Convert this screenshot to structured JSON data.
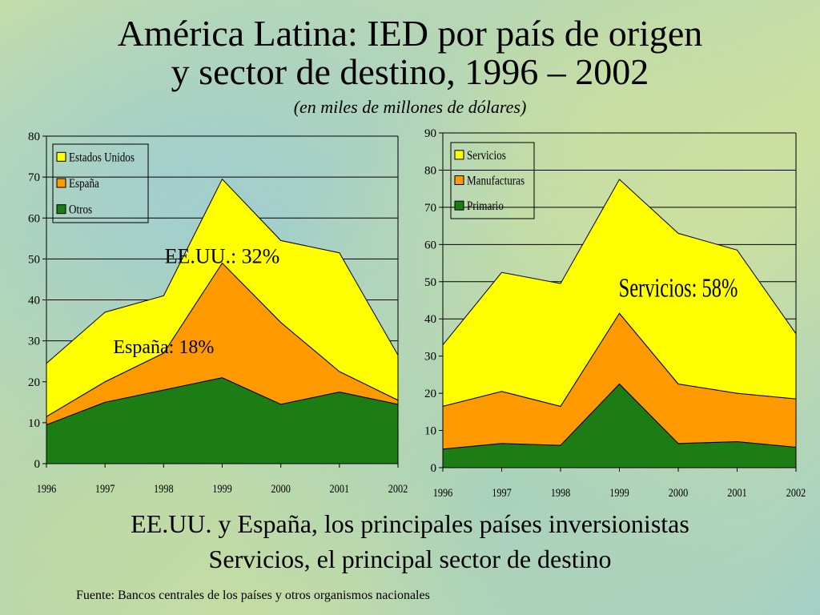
{
  "title_line1": "América Latina: IED por país de origen",
  "title_line2": "y sector de destino, 1996 – 2002",
  "subtitle": "(en miles de millones de dólares)",
  "footer_line1": "EE.UU. y España, los principales países inversionistas",
  "footer_line2": "Servicios, el principal sector de destino",
  "source": "Fuente: Bancos centrales de los países y otros organismos nacionales",
  "colors": {
    "green": "#1b7d14",
    "orange": "#ff9900",
    "yellow": "#ffff00",
    "grid": "#000000"
  },
  "chart_data": [
    {
      "type": "area",
      "stacked": true,
      "x": [
        "1996",
        "1997",
        "1998",
        "1999",
        "2000",
        "2001",
        "2002"
      ],
      "ylim": [
        0,
        80
      ],
      "yticks": [
        0,
        10,
        20,
        30,
        40,
        50,
        60,
        70,
        80
      ],
      "grid": true,
      "legend_position": "top-left",
      "series": [
        {
          "name": "Otros",
          "color": "#1b7d14",
          "values": [
            9.5,
            15,
            18,
            21,
            14.5,
            17.5,
            14.5
          ]
        },
        {
          "name": "España",
          "color": "#ff9900",
          "values": [
            2,
            5,
            9,
            28,
            20,
            5,
            1
          ]
        },
        {
          "name": "Estados Unidos",
          "color": "#ffff00",
          "values": [
            13,
            17,
            14,
            20.5,
            20,
            29,
            11
          ]
        }
      ],
      "annotations": [
        {
          "text": "EE.UU.: 32%",
          "x": "1999",
          "y": 49
        },
        {
          "text": "España: 18%",
          "x": "1998",
          "y": 27
        }
      ]
    },
    {
      "type": "area",
      "stacked": true,
      "x": [
        "1996",
        "1997",
        "1998",
        "1999",
        "2000",
        "2001",
        "2002"
      ],
      "ylim": [
        0,
        90
      ],
      "yticks": [
        0,
        10,
        20,
        30,
        40,
        50,
        60,
        70,
        80,
        90
      ],
      "grid": true,
      "legend_position": "top-left",
      "series": [
        {
          "name": "Primario",
          "color": "#1b7d14",
          "values": [
            5,
            6.5,
            6,
            22.5,
            6.5,
            7,
            5.5
          ]
        },
        {
          "name": "Manufacturas",
          "color": "#ff9900",
          "values": [
            11.5,
            14,
            10.5,
            19,
            16,
            13,
            13
          ]
        },
        {
          "name": "Servicios",
          "color": "#ffff00",
          "values": [
            16.5,
            32,
            33,
            36,
            40.5,
            38.5,
            17.5
          ]
        }
      ],
      "annotations": [
        {
          "text": "Servicios: 58%",
          "x": "2000",
          "y": 46
        }
      ]
    }
  ]
}
